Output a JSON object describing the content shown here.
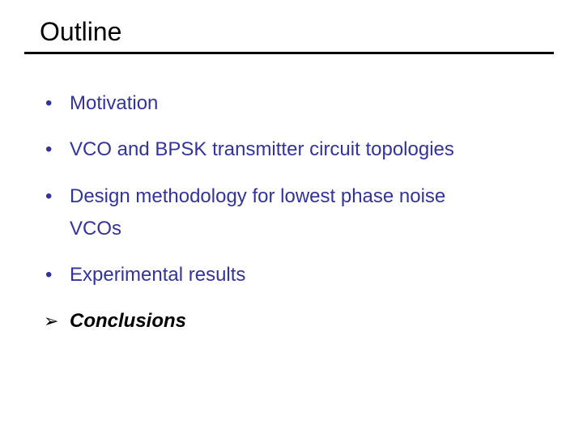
{
  "title": "Outline",
  "items": [
    {
      "marker": "•",
      "text": "Motivation"
    },
    {
      "marker": "•",
      "text": "VCO and BPSK transmitter circuit topologies"
    },
    {
      "marker": "•",
      "text": "Design methodology for lowest phase noise",
      "text2": "VCOs"
    },
    {
      "marker": "•",
      "text": "Experimental results"
    },
    {
      "marker": "➢",
      "text": "Conclusions"
    }
  ],
  "colors": {
    "bullet_text": "#333399",
    "current_item": "#000000"
  }
}
